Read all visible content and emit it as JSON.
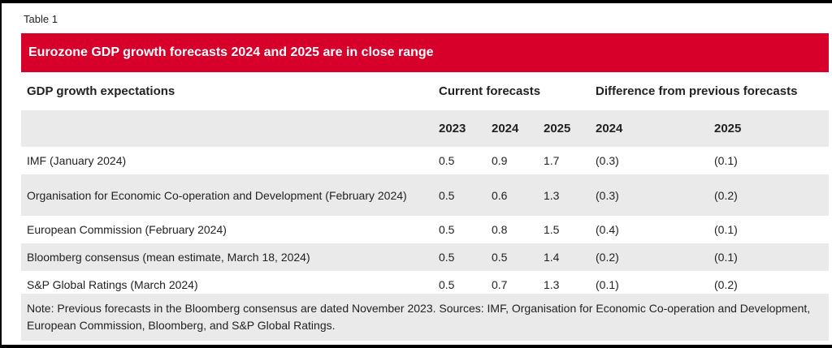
{
  "table_label": "Table 1",
  "title": "Eurozone GDP growth forecasts 2024 and 2025 are in close range",
  "header": {
    "col_label": "GDP growth expectations",
    "current_group": "Current forecasts",
    "difference_group": "Difference from previous forecasts",
    "years": {
      "y2023": "2023",
      "y2024": "2024",
      "y2025": "2025",
      "d2024": "2024",
      "d2025": "2025"
    }
  },
  "rows": [
    {
      "label": "IMF (January 2024)",
      "y2023": "0.5",
      "y2024": "0.9",
      "y2025": "1.7",
      "d2024": "(0.3)",
      "d2025": "(0.1)"
    },
    {
      "label": "Organisation for Economic Co-operation and Development (February 2024)",
      "y2023": "0.5",
      "y2024": "0.6",
      "y2025": "1.3",
      "d2024": "(0.3)",
      "d2025": "(0.2)"
    },
    {
      "label": "European Commission (February 2024)",
      "y2023": "0.5",
      "y2024": "0.8",
      "y2025": "1.5",
      "d2024": "(0.4)",
      "d2025": "(0.1)"
    },
    {
      "label": "Bloomberg consensus (mean estimate, March 18, 2024)",
      "y2023": "0.5",
      "y2024": "0.5",
      "y2025": "1.4",
      "d2024": "(0.2)",
      "d2025": "(0.1)"
    },
    {
      "label": "S&P Global Ratings (March 2024)",
      "y2023": "0.5",
      "y2024": "0.7",
      "y2025": "1.3",
      "d2024": "(0.1)",
      "d2025": "(0.2)"
    }
  ],
  "note": "Note: Previous forecasts in the Bloomberg consensus are dated November 2023. Sources: IMF, Organisation for Economic Co-operation and Development, European Commission, Bloomberg, and S&P Global Ratings.",
  "colors": {
    "banner": "#d6002a",
    "row_shade": "#eaeaea"
  }
}
